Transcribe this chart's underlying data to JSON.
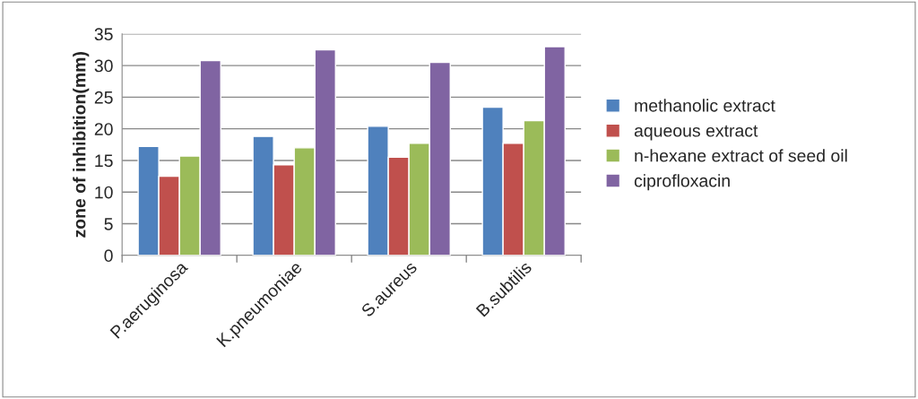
{
  "chart_data": {
    "type": "bar",
    "ylabel": "zone of inhibition(mm)",
    "categories": [
      "P.aeruginosa",
      "K.pneumoniae",
      "S.aureus",
      "B.subtilis"
    ],
    "series": [
      {
        "name": "methanolic extract",
        "color": "#4f81bd",
        "values": [
          17.2,
          18.8,
          20.4,
          23.4
        ]
      },
      {
        "name": "aqueous extract",
        "color": "#c0504d",
        "values": [
          12.5,
          14.3,
          15.5,
          17.7
        ]
      },
      {
        "name": "n-hexane extract of seed oil",
        "color": "#9bbb59",
        "values": [
          15.7,
          17.0,
          17.7,
          21.3
        ]
      },
      {
        "name": "ciprofloxacin",
        "color": "#8064a2",
        "values": [
          30.8,
          32.5,
          30.5,
          33.0
        ]
      }
    ],
    "ylim": [
      0,
      35
    ],
    "yticks": [
      0,
      5,
      10,
      15,
      20,
      25,
      30,
      35
    ],
    "grid": "y",
    "legend": "right"
  }
}
